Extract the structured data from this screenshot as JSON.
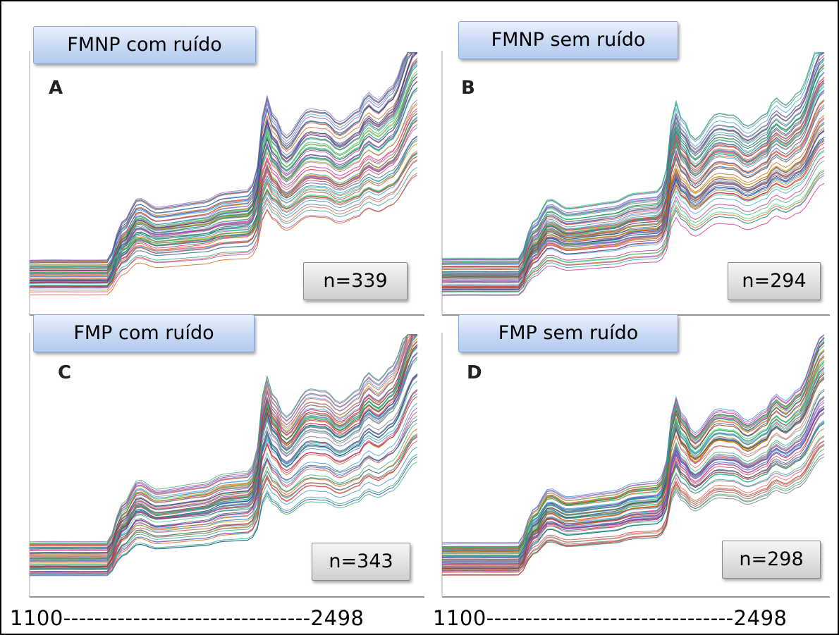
{
  "panels": [
    {
      "title": "FMNP com ruído",
      "letter": "A",
      "n": "n=339"
    },
    {
      "title": "FMNP sem ruído",
      "letter": "B",
      "n": "n=294"
    },
    {
      "title": "FMP com ruído",
      "letter": "C",
      "n": "n=343"
    },
    {
      "title": "FMP sem ruído",
      "letter": "D",
      "n": "n=298"
    }
  ],
  "x_axis_labels": [
    "1100--------------------------------2498",
    "1100--------------------------------2498"
  ]
}
